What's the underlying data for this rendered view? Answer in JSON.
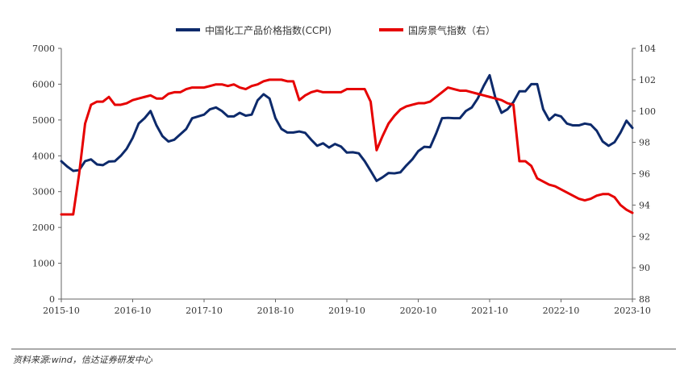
{
  "source_note": "资料来源:wind，信达证券研发中心",
  "chart_data": {
    "type": "line",
    "x": [
      "2015-10",
      "2015-11",
      "2015-12",
      "2016-01",
      "2016-02",
      "2016-03",
      "2016-04",
      "2016-05",
      "2016-06",
      "2016-07",
      "2016-08",
      "2016-09",
      "2016-10",
      "2016-11",
      "2016-12",
      "2017-01",
      "2017-02",
      "2017-03",
      "2017-04",
      "2017-05",
      "2017-06",
      "2017-07",
      "2017-08",
      "2017-09",
      "2017-10",
      "2017-11",
      "2017-12",
      "2018-01",
      "2018-02",
      "2018-03",
      "2018-04",
      "2018-05",
      "2018-06",
      "2018-07",
      "2018-08",
      "2018-09",
      "2018-10",
      "2018-11",
      "2018-12",
      "2019-01",
      "2019-02",
      "2019-03",
      "2019-04",
      "2019-05",
      "2019-06",
      "2019-07",
      "2019-08",
      "2019-09",
      "2019-10",
      "2019-11",
      "2019-12",
      "2020-01",
      "2020-02",
      "2020-03",
      "2020-04",
      "2020-05",
      "2020-06",
      "2020-07",
      "2020-08",
      "2020-09",
      "2020-10",
      "2020-11",
      "2020-12",
      "2021-01",
      "2021-02",
      "2021-03",
      "2021-04",
      "2021-05",
      "2021-06",
      "2021-07",
      "2021-08",
      "2021-09",
      "2021-10",
      "2021-11",
      "2021-12",
      "2022-01",
      "2022-02",
      "2022-03",
      "2022-04",
      "2022-05",
      "2022-06",
      "2022-07",
      "2022-08",
      "2022-09",
      "2022-10",
      "2022-11",
      "2022-12",
      "2023-01",
      "2023-02",
      "2023-03",
      "2023-04",
      "2023-05",
      "2023-06",
      "2023-07",
      "2023-08",
      "2023-09",
      "2023-10"
    ],
    "x_ticks": [
      "2015-10",
      "2016-10",
      "2017-10",
      "2018-10",
      "2019-10",
      "2020-10",
      "2021-10",
      "2022-10",
      "2023-10"
    ],
    "y_left": {
      "ylim": [
        0,
        7000
      ],
      "ticks": [
        0,
        1000,
        2000,
        3000,
        4000,
        5000,
        6000,
        7000
      ]
    },
    "y_right": {
      "ylim": [
        88,
        104
      ],
      "ticks": [
        88,
        90,
        92,
        94,
        96,
        98,
        100,
        102,
        104
      ]
    },
    "series": [
      {
        "name": "中国化工产品价格指数(CCPI)",
        "axis": "left",
        "color": "#0d2a6b",
        "values": [
          3850,
          3700,
          3580,
          3600,
          3850,
          3900,
          3760,
          3740,
          3840,
          3850,
          4000,
          4200,
          4500,
          4900,
          5050,
          5250,
          4850,
          4550,
          4400,
          4450,
          4600,
          4750,
          5050,
          5100,
          5150,
          5300,
          5350,
          5250,
          5100,
          5100,
          5200,
          5120,
          5150,
          5550,
          5720,
          5600,
          5050,
          4750,
          4650,
          4650,
          4680,
          4640,
          4450,
          4280,
          4350,
          4230,
          4330,
          4260,
          4090,
          4100,
          4070,
          3850,
          3580,
          3300,
          3400,
          3520,
          3510,
          3540,
          3730,
          3900,
          4130,
          4250,
          4240,
          4620,
          5050,
          5060,
          5050,
          5050,
          5250,
          5350,
          5600,
          5950,
          6250,
          5600,
          5200,
          5300,
          5500,
          5800,
          5800,
          6000,
          6000,
          5300,
          5000,
          5150,
          5100,
          4900,
          4850,
          4850,
          4900,
          4870,
          4700,
          4400,
          4280,
          4380,
          4650,
          4980,
          4780
        ]
      },
      {
        "name": "国房景气指数（右）",
        "axis": "right",
        "color": "#e60000",
        "values": [
          93.4,
          93.4,
          93.4,
          96,
          99.2,
          100.4,
          100.6,
          100.6,
          100.9,
          100.4,
          100.4,
          100.5,
          100.7,
          100.8,
          100.9,
          101.0,
          100.8,
          100.8,
          101.1,
          101.2,
          101.2,
          101.4,
          101.5,
          101.5,
          101.5,
          101.6,
          101.7,
          101.7,
          101.6,
          101.7,
          101.5,
          101.4,
          101.6,
          101.7,
          101.9,
          102.0,
          102.0,
          102.0,
          101.9,
          101.9,
          100.7,
          101.0,
          101.2,
          101.3,
          101.2,
          101.2,
          101.2,
          101.2,
          101.4,
          101.4,
          101.4,
          101.4,
          100.6,
          97.5,
          98.4,
          99.2,
          99.7,
          100.1,
          100.3,
          100.4,
          100.5,
          100.5,
          100.6,
          100.9,
          101.2,
          101.5,
          101.4,
          101.3,
          101.3,
          101.2,
          101.1,
          101.0,
          100.9,
          100.8,
          100.7,
          100.5,
          100.4,
          96.8,
          96.8,
          96.5,
          95.7,
          95.5,
          95.3,
          95.2,
          95.0,
          94.8,
          94.6,
          94.4,
          94.3,
          94.4,
          94.6,
          94.7,
          94.7,
          94.5,
          94.0,
          93.7,
          93.5
        ]
      }
    ]
  }
}
